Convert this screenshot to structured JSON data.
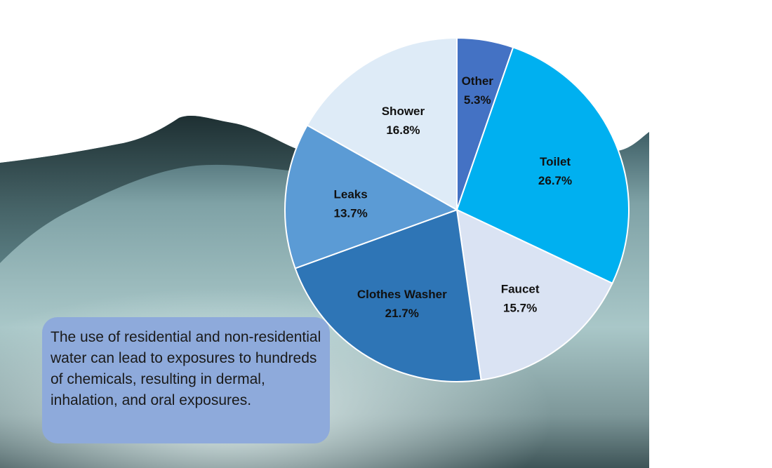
{
  "note": {
    "text": "The use of residential and non-residential water can lead to exposures to hundreds of chemicals, resulting in dermal, inhalation,  and oral exposures."
  },
  "colors": {
    "other": "#4472c4",
    "toilet": "#00b0f0",
    "faucet": "#dae3f3",
    "clothes_washer": "#2e75b6",
    "leaks": "#5b9bd5",
    "shower": "#deebf7",
    "note_box": "#8eaadb"
  },
  "chart_data": {
    "type": "pie",
    "title": "",
    "start": "12 o'clock, clockwise",
    "slices": [
      {
        "label": "Other",
        "value": 5.3,
        "value_label": "5.3%",
        "color": "#4472c4"
      },
      {
        "label": "Toilet",
        "value": 26.7,
        "value_label": "26.7%",
        "color": "#00b0f0"
      },
      {
        "label": "Faucet",
        "value": 15.7,
        "value_label": "15.7%",
        "color": "#dae3f3"
      },
      {
        "label": "Clothes Washer",
        "value": 21.7,
        "value_label": "21.7%",
        "color": "#2e75b6"
      },
      {
        "label": "Leaks",
        "value": 13.7,
        "value_label": "13.7%",
        "color": "#5b9bd5"
      },
      {
        "label": "Shower",
        "value": 16.8,
        "value_label": "16.8%",
        "color": "#deebf7"
      }
    ]
  }
}
